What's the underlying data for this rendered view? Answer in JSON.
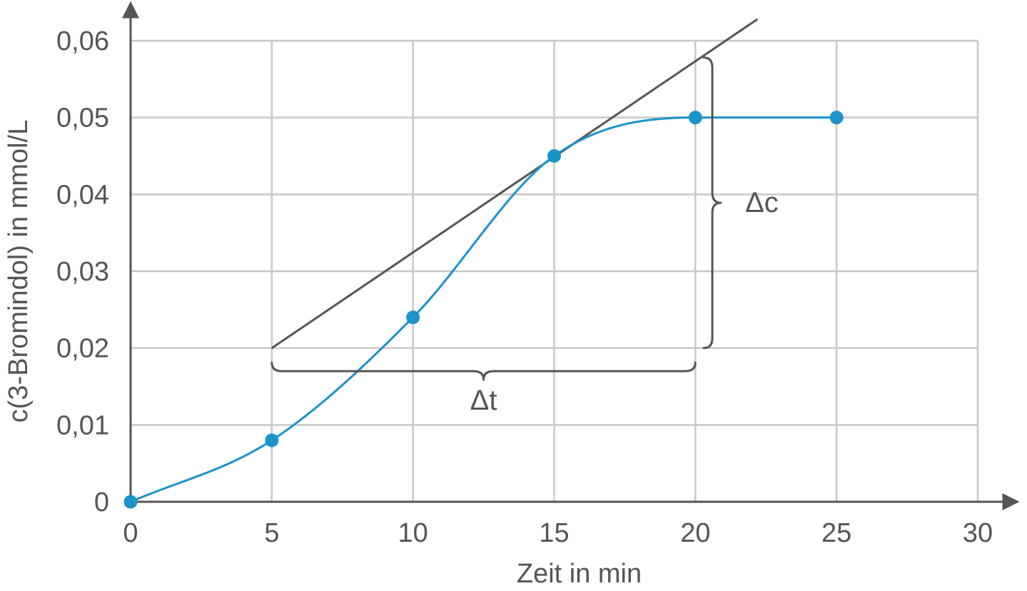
{
  "chart_data": {
    "type": "line",
    "xlabel": "Zeit in min",
    "ylabel": "c(3-Bromindol) in mmol/L",
    "xlim": [
      0,
      30
    ],
    "ylim": [
      0,
      0.06
    ],
    "x_ticks": [
      0,
      5,
      10,
      15,
      20,
      25,
      30
    ],
    "x_tick_labels": [
      "0",
      "5",
      "10",
      "15",
      "20",
      "25",
      "30"
    ],
    "y_ticks": [
      0,
      0.01,
      0.02,
      0.03,
      0.04,
      0.05,
      0.06
    ],
    "y_tick_labels": [
      "0",
      "0,01",
      "0,02",
      "0,03",
      "0,04",
      "0,05",
      "0,06"
    ],
    "grid": true,
    "series": [
      {
        "x": [
          0,
          5,
          10,
          15,
          20,
          25
        ],
        "y": [
          0,
          0.008,
          0.024,
          0.045,
          0.05,
          0.05
        ],
        "color": "#1a93c8"
      }
    ],
    "tangent": {
      "x": [
        5,
        22.2
      ],
      "y": [
        0.02,
        0.0628
      ],
      "color": "#555555"
    },
    "annotations": [
      {
        "text": "Δt",
        "brace": "horizontal",
        "x_range": [
          5,
          20
        ],
        "y": 0.017
      },
      {
        "text": "Δc",
        "brace": "vertical",
        "y_range": [
          0.02,
          0.0578
        ],
        "x": 20.6
      }
    ]
  }
}
